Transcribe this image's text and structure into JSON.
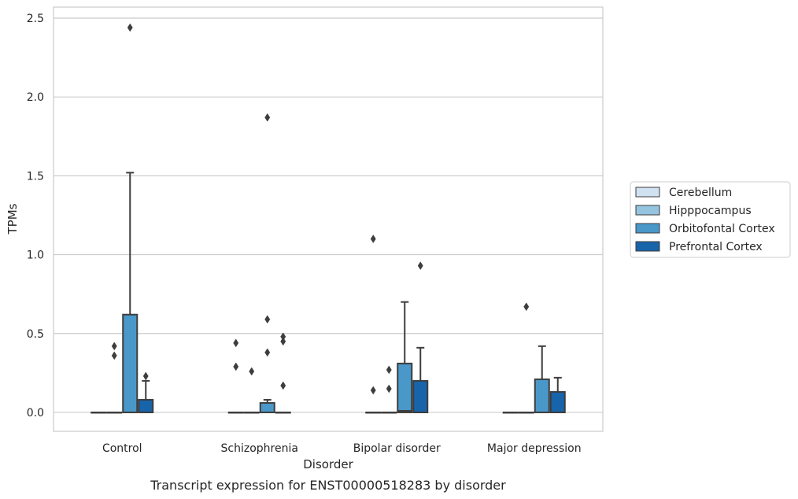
{
  "chart_data": {
    "type": "box",
    "caption": "Transcript expression for ENST00000518283 by disorder",
    "xlabel": "Disorder",
    "ylabel": "TPMs",
    "ylim": [
      -0.12,
      2.57
    ],
    "yticks": [
      "0.0",
      "0.5",
      "1.0",
      "1.5",
      "2.0",
      "2.5"
    ],
    "ytick_values": [
      0.0,
      0.5,
      1.0,
      1.5,
      2.0,
      2.5
    ],
    "grid": "horizontal",
    "legend_position": "right",
    "categories": [
      "Control",
      "Schizophrenia",
      "Bipolar disorder",
      "Major depression"
    ],
    "hues": [
      {
        "name": "Cerebellum",
        "color": "#d0e1f2"
      },
      {
        "name": "Hipppocampus",
        "color": "#94c4df"
      },
      {
        "name": "Orbitofontal Cortex",
        "color": "#4a98c9"
      },
      {
        "name": "Prefrontal Cortex",
        "color": "#1764ab"
      }
    ],
    "boxes": [
      {
        "category": "Control",
        "hue": "Cerebellum",
        "q1": 0,
        "median": 0,
        "q3": 0,
        "whisker_low": 0,
        "whisker_high": 0,
        "outliers": []
      },
      {
        "category": "Control",
        "hue": "Hipppocampus",
        "q1": 0,
        "median": 0,
        "q3": 0,
        "whisker_low": 0,
        "whisker_high": 0,
        "outliers": [
          0.42,
          0.36
        ]
      },
      {
        "category": "Control",
        "hue": "Orbitofontal Cortex",
        "q1": 0,
        "median": 0,
        "q3": 0.62,
        "whisker_low": 0,
        "whisker_high": 1.52,
        "outliers": [
          2.44
        ]
      },
      {
        "category": "Control",
        "hue": "Prefrontal Cortex",
        "q1": 0,
        "median": 0,
        "q3": 0.08,
        "whisker_low": 0,
        "whisker_high": 0.2,
        "outliers": [
          0.23
        ]
      },
      {
        "category": "Schizophrenia",
        "hue": "Cerebellum",
        "q1": 0,
        "median": 0,
        "q3": 0,
        "whisker_low": 0,
        "whisker_high": 0,
        "outliers": [
          0.44,
          0.29
        ]
      },
      {
        "category": "Schizophrenia",
        "hue": "Hipppocampus",
        "q1": 0,
        "median": 0,
        "q3": 0,
        "whisker_low": 0,
        "whisker_high": 0,
        "outliers": [
          0.26
        ]
      },
      {
        "category": "Schizophrenia",
        "hue": "Orbitofontal Cortex",
        "q1": 0,
        "median": 0,
        "q3": 0.06,
        "whisker_low": 0,
        "whisker_high": 0.08,
        "outliers": [
          1.87,
          0.59,
          0.38
        ]
      },
      {
        "category": "Schizophrenia",
        "hue": "Prefrontal Cortex",
        "q1": 0,
        "median": 0,
        "q3": 0,
        "whisker_low": 0,
        "whisker_high": 0,
        "outliers": [
          0.48,
          0.45,
          0.17
        ]
      },
      {
        "category": "Bipolar disorder",
        "hue": "Cerebellum",
        "q1": 0,
        "median": 0,
        "q3": 0,
        "whisker_low": 0,
        "whisker_high": 0,
        "outliers": [
          1.1,
          0.14
        ]
      },
      {
        "category": "Bipolar disorder",
        "hue": "Hipppocampus",
        "q1": 0,
        "median": 0,
        "q3": 0,
        "whisker_low": 0,
        "whisker_high": 0,
        "outliers": [
          0.27,
          0.15
        ]
      },
      {
        "category": "Bipolar disorder",
        "hue": "Orbitofontal Cortex",
        "q1": 0,
        "median": 0.01,
        "q3": 0.31,
        "whisker_low": 0,
        "whisker_high": 0.7,
        "outliers": []
      },
      {
        "category": "Bipolar disorder",
        "hue": "Prefrontal Cortex",
        "q1": 0,
        "median": 0,
        "q3": 0.2,
        "whisker_low": 0,
        "whisker_high": 0.41,
        "outliers": [
          0.93
        ]
      },
      {
        "category": "Major depression",
        "hue": "Cerebellum",
        "q1": 0,
        "median": 0,
        "q3": 0,
        "whisker_low": 0,
        "whisker_high": 0,
        "outliers": []
      },
      {
        "category": "Major depression",
        "hue": "Hipppocampus",
        "q1": 0,
        "median": 0,
        "q3": 0,
        "whisker_low": 0,
        "whisker_high": 0,
        "outliers": [
          0.67
        ]
      },
      {
        "category": "Major depression",
        "hue": "Orbitofontal Cortex",
        "q1": 0,
        "median": 0,
        "q3": 0.21,
        "whisker_low": 0,
        "whisker_high": 0.42,
        "outliers": []
      },
      {
        "category": "Major depression",
        "hue": "Prefrontal Cortex",
        "q1": 0,
        "median": 0,
        "q3": 0.13,
        "whisker_low": 0,
        "whisker_high": 0.22,
        "outliers": []
      }
    ]
  }
}
